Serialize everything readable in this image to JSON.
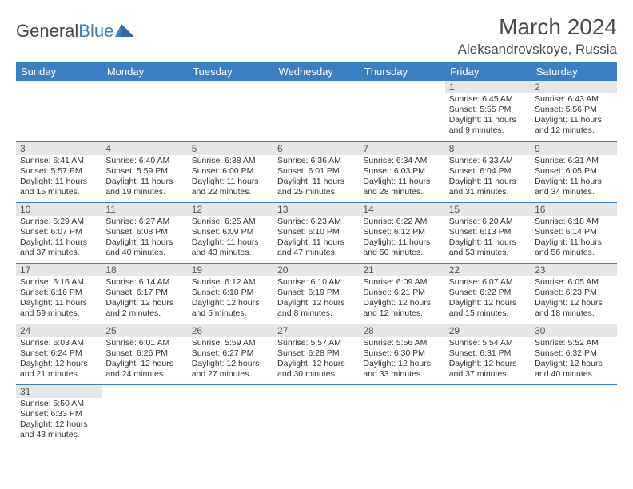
{
  "logo": {
    "text1": "General",
    "text2": "Blue"
  },
  "title": "March 2024",
  "location": "Aleksandrovskoye, Russia",
  "colors": {
    "header_bg": "#3a7fc4",
    "header_text": "#ffffff",
    "daynum_bg": "#e6e6e6",
    "body_text": "#333333",
    "title_text": "#4a4a4a",
    "row_border": "#3a7fc4"
  },
  "days_of_week": [
    "Sunday",
    "Monday",
    "Tuesday",
    "Wednesday",
    "Thursday",
    "Friday",
    "Saturday"
  ],
  "weeks": [
    [
      {
        "num": "",
        "sunrise": "",
        "sunset": "",
        "daylight": ""
      },
      {
        "num": "",
        "sunrise": "",
        "sunset": "",
        "daylight": ""
      },
      {
        "num": "",
        "sunrise": "",
        "sunset": "",
        "daylight": ""
      },
      {
        "num": "",
        "sunrise": "",
        "sunset": "",
        "daylight": ""
      },
      {
        "num": "",
        "sunrise": "",
        "sunset": "",
        "daylight": ""
      },
      {
        "num": "1",
        "sunrise": "Sunrise: 6:45 AM",
        "sunset": "Sunset: 5:55 PM",
        "daylight": "Daylight: 11 hours and 9 minutes."
      },
      {
        "num": "2",
        "sunrise": "Sunrise: 6:43 AM",
        "sunset": "Sunset: 5:56 PM",
        "daylight": "Daylight: 11 hours and 12 minutes."
      }
    ],
    [
      {
        "num": "3",
        "sunrise": "Sunrise: 6:41 AM",
        "sunset": "Sunset: 5:57 PM",
        "daylight": "Daylight: 11 hours and 15 minutes."
      },
      {
        "num": "4",
        "sunrise": "Sunrise: 6:40 AM",
        "sunset": "Sunset: 5:59 PM",
        "daylight": "Daylight: 11 hours and 19 minutes."
      },
      {
        "num": "5",
        "sunrise": "Sunrise: 6:38 AM",
        "sunset": "Sunset: 6:00 PM",
        "daylight": "Daylight: 11 hours and 22 minutes."
      },
      {
        "num": "6",
        "sunrise": "Sunrise: 6:36 AM",
        "sunset": "Sunset: 6:01 PM",
        "daylight": "Daylight: 11 hours and 25 minutes."
      },
      {
        "num": "7",
        "sunrise": "Sunrise: 6:34 AM",
        "sunset": "Sunset: 6:03 PM",
        "daylight": "Daylight: 11 hours and 28 minutes."
      },
      {
        "num": "8",
        "sunrise": "Sunrise: 6:33 AM",
        "sunset": "Sunset: 6:04 PM",
        "daylight": "Daylight: 11 hours and 31 minutes."
      },
      {
        "num": "9",
        "sunrise": "Sunrise: 6:31 AM",
        "sunset": "Sunset: 6:05 PM",
        "daylight": "Daylight: 11 hours and 34 minutes."
      }
    ],
    [
      {
        "num": "10",
        "sunrise": "Sunrise: 6:29 AM",
        "sunset": "Sunset: 6:07 PM",
        "daylight": "Daylight: 11 hours and 37 minutes."
      },
      {
        "num": "11",
        "sunrise": "Sunrise: 6:27 AM",
        "sunset": "Sunset: 6:08 PM",
        "daylight": "Daylight: 11 hours and 40 minutes."
      },
      {
        "num": "12",
        "sunrise": "Sunrise: 6:25 AM",
        "sunset": "Sunset: 6:09 PM",
        "daylight": "Daylight: 11 hours and 43 minutes."
      },
      {
        "num": "13",
        "sunrise": "Sunrise: 6:23 AM",
        "sunset": "Sunset: 6:10 PM",
        "daylight": "Daylight: 11 hours and 47 minutes."
      },
      {
        "num": "14",
        "sunrise": "Sunrise: 6:22 AM",
        "sunset": "Sunset: 6:12 PM",
        "daylight": "Daylight: 11 hours and 50 minutes."
      },
      {
        "num": "15",
        "sunrise": "Sunrise: 6:20 AM",
        "sunset": "Sunset: 6:13 PM",
        "daylight": "Daylight: 11 hours and 53 minutes."
      },
      {
        "num": "16",
        "sunrise": "Sunrise: 6:18 AM",
        "sunset": "Sunset: 6:14 PM",
        "daylight": "Daylight: 11 hours and 56 minutes."
      }
    ],
    [
      {
        "num": "17",
        "sunrise": "Sunrise: 6:16 AM",
        "sunset": "Sunset: 6:16 PM",
        "daylight": "Daylight: 11 hours and 59 minutes."
      },
      {
        "num": "18",
        "sunrise": "Sunrise: 6:14 AM",
        "sunset": "Sunset: 6:17 PM",
        "daylight": "Daylight: 12 hours and 2 minutes."
      },
      {
        "num": "19",
        "sunrise": "Sunrise: 6:12 AM",
        "sunset": "Sunset: 6:18 PM",
        "daylight": "Daylight: 12 hours and 5 minutes."
      },
      {
        "num": "20",
        "sunrise": "Sunrise: 6:10 AM",
        "sunset": "Sunset: 6:19 PM",
        "daylight": "Daylight: 12 hours and 8 minutes."
      },
      {
        "num": "21",
        "sunrise": "Sunrise: 6:09 AM",
        "sunset": "Sunset: 6:21 PM",
        "daylight": "Daylight: 12 hours and 12 minutes."
      },
      {
        "num": "22",
        "sunrise": "Sunrise: 6:07 AM",
        "sunset": "Sunset: 6:22 PM",
        "daylight": "Daylight: 12 hours and 15 minutes."
      },
      {
        "num": "23",
        "sunrise": "Sunrise: 6:05 AM",
        "sunset": "Sunset: 6:23 PM",
        "daylight": "Daylight: 12 hours and 18 minutes."
      }
    ],
    [
      {
        "num": "24",
        "sunrise": "Sunrise: 6:03 AM",
        "sunset": "Sunset: 6:24 PM",
        "daylight": "Daylight: 12 hours and 21 minutes."
      },
      {
        "num": "25",
        "sunrise": "Sunrise: 6:01 AM",
        "sunset": "Sunset: 6:26 PM",
        "daylight": "Daylight: 12 hours and 24 minutes."
      },
      {
        "num": "26",
        "sunrise": "Sunrise: 5:59 AM",
        "sunset": "Sunset: 6:27 PM",
        "daylight": "Daylight: 12 hours and 27 minutes."
      },
      {
        "num": "27",
        "sunrise": "Sunrise: 5:57 AM",
        "sunset": "Sunset: 6:28 PM",
        "daylight": "Daylight: 12 hours and 30 minutes."
      },
      {
        "num": "28",
        "sunrise": "Sunrise: 5:56 AM",
        "sunset": "Sunset: 6:30 PM",
        "daylight": "Daylight: 12 hours and 33 minutes."
      },
      {
        "num": "29",
        "sunrise": "Sunrise: 5:54 AM",
        "sunset": "Sunset: 6:31 PM",
        "daylight": "Daylight: 12 hours and 37 minutes."
      },
      {
        "num": "30",
        "sunrise": "Sunrise: 5:52 AM",
        "sunset": "Sunset: 6:32 PM",
        "daylight": "Daylight: 12 hours and 40 minutes."
      }
    ],
    [
      {
        "num": "31",
        "sunrise": "Sunrise: 5:50 AM",
        "sunset": "Sunset: 6:33 PM",
        "daylight": "Daylight: 12 hours and 43 minutes."
      },
      {
        "num": "",
        "sunrise": "",
        "sunset": "",
        "daylight": ""
      },
      {
        "num": "",
        "sunrise": "",
        "sunset": "",
        "daylight": ""
      },
      {
        "num": "",
        "sunrise": "",
        "sunset": "",
        "daylight": ""
      },
      {
        "num": "",
        "sunrise": "",
        "sunset": "",
        "daylight": ""
      },
      {
        "num": "",
        "sunrise": "",
        "sunset": "",
        "daylight": ""
      },
      {
        "num": "",
        "sunrise": "",
        "sunset": "",
        "daylight": ""
      }
    ]
  ]
}
